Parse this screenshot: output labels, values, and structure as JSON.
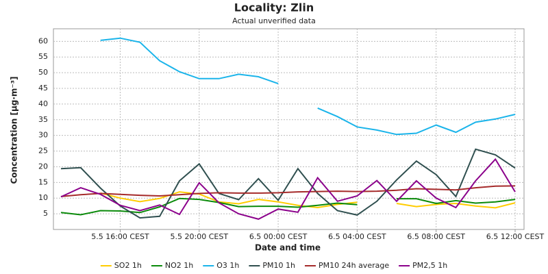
{
  "chart_data": {
    "type": "line",
    "title": "Locality: Zlin",
    "subtitle": "Actual unverified data",
    "x_label": "Date and time",
    "y_label": "Concentration [µg·m⁻³]",
    "categories": [
      null,
      null,
      null,
      "5.5 16:00 CEST",
      null,
      null,
      null,
      "5.5 20:00 CEST",
      null,
      null,
      null,
      "6.5 00:00 CEST",
      null,
      null,
      null,
      "6.5 04:00 CEST",
      null,
      null,
      null,
      "6.5 08:00 CEST",
      null,
      null,
      null,
      "6.5 12:00 CEST"
    ],
    "ylim": [
      0,
      64
    ],
    "yticks": [
      5,
      10,
      15,
      20,
      25,
      30,
      35,
      40,
      45,
      50,
      55,
      60
    ],
    "grid": true,
    "legend": "bottom",
    "series": [
      {
        "name": "SO2 1h",
        "color": "#ffcc00",
        "values": [
          null,
          null,
          11.6,
          10,
          8.9,
          9.9,
          12,
          11.3,
          8.8,
          8.2,
          9.6,
          8.8,
          7.7,
          7,
          8,
          8.7,
          null,
          8.3,
          7.3,
          8,
          8.3,
          7.5,
          6.9,
          8.5
        ]
      },
      {
        "name": "NO2 1h",
        "color": "#0a8a0a",
        "values": [
          5.4,
          4.7,
          6,
          5.9,
          5.4,
          7.2,
          9.9,
          9.6,
          8.6,
          7.3,
          7.4,
          7.4,
          7.1,
          7.7,
          8.4,
          7.9,
          null,
          9.8,
          9.8,
          8.3,
          9.2,
          8.4,
          8.8,
          9.6
        ]
      },
      {
        "name": "O3 1h",
        "color": "#1ab4ea",
        "values": [
          null,
          null,
          60.3,
          61,
          59.7,
          53.8,
          50.3,
          48.1,
          48.1,
          49.5,
          48.7,
          46.5,
          null,
          38.7,
          36,
          32.7,
          31.7,
          30.3,
          30.7,
          33.3,
          31,
          34.2,
          35.2,
          36.7
        ]
      },
      {
        "name": "PM10 1h",
        "color": "#2f4f4f",
        "values": [
          19.4,
          19.7,
          13.2,
          7.5,
          3.7,
          4.2,
          15.5,
          20.9,
          11.5,
          9.5,
          16.2,
          9.3,
          19.4,
          11.5,
          6,
          4.6,
          9,
          15.8,
          21.8,
          17.5,
          10.5,
          25.6,
          23.8,
          19.6
        ]
      },
      {
        "name": "PM10 24h average",
        "color": "#a52a2a",
        "values": [
          10.5,
          11.1,
          11.5,
          11.2,
          10.9,
          10.7,
          11.1,
          11.5,
          11.7,
          11.6,
          11.6,
          11.7,
          12,
          12.1,
          12.2,
          12.1,
          12.2,
          12.5,
          13,
          12.8,
          12.6,
          13.3,
          13.8,
          13.9
        ]
      },
      {
        "name": "PM2,5 1h",
        "color": "#8b008b",
        "values": [
          10.4,
          13.3,
          11.2,
          7.7,
          6,
          7.8,
          4.8,
          14.9,
          8.5,
          5,
          3.3,
          6.5,
          5.5,
          16.5,
          9,
          10.7,
          15.6,
          9,
          15.5,
          10,
          7,
          15.5,
          22.4,
          12
        ]
      }
    ]
  }
}
